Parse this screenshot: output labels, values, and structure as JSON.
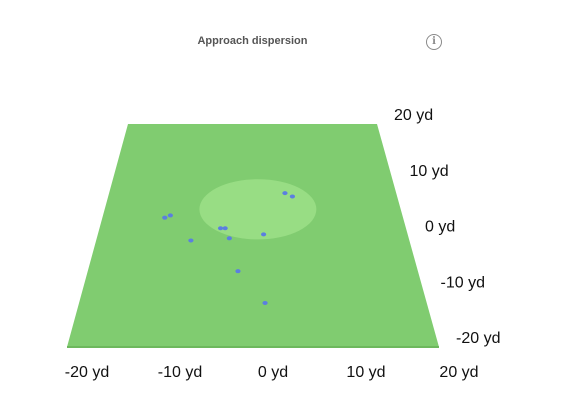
{
  "header": {
    "title": "Approach dispersion",
    "info_icon": "info-icon"
  },
  "colors": {
    "fairway": "#80cc70",
    "green": "#98dd84",
    "shot": "#5b7fe0",
    "edge": "#6db85d"
  },
  "chart_data": {
    "type": "scatter",
    "title": "Approach dispersion",
    "xlabel": "",
    "ylabel": "",
    "unit": "yd",
    "xlim": [
      -20,
      20
    ],
    "ylim": [
      -20,
      20
    ],
    "x_ticks": [
      "-20 yd",
      "-10 yd",
      "0 yd",
      "10 yd",
      "20 yd"
    ],
    "x_tick_values": [
      -20,
      -10,
      0,
      10,
      20
    ],
    "y_ticks": [
      "20 yd",
      "10 yd",
      "0 yd",
      "-10 yd",
      "-20 yd"
    ],
    "y_tick_values": [
      20,
      10,
      0,
      -10,
      -20
    ],
    "green": {
      "center_x": 0.7,
      "center_y": 4.7,
      "radius_x": 7.9,
      "radius_y": 5.4
    },
    "points": [
      {
        "x": -11.7,
        "y": 3.2
      },
      {
        "x": -11.0,
        "y": 3.6
      },
      {
        "x": -4.2,
        "y": 1.3
      },
      {
        "x": -3.6,
        "y": 1.3
      },
      {
        "x": -3.0,
        "y": -0.5
      },
      {
        "x": -7.9,
        "y": -0.9
      },
      {
        "x": 1.4,
        "y": 0.2
      },
      {
        "x": 4.5,
        "y": 7.6
      },
      {
        "x": 5.5,
        "y": 7.0
      },
      {
        "x": -1.8,
        "y": -6.4
      },
      {
        "x": 1.4,
        "y": -12.1
      }
    ]
  }
}
